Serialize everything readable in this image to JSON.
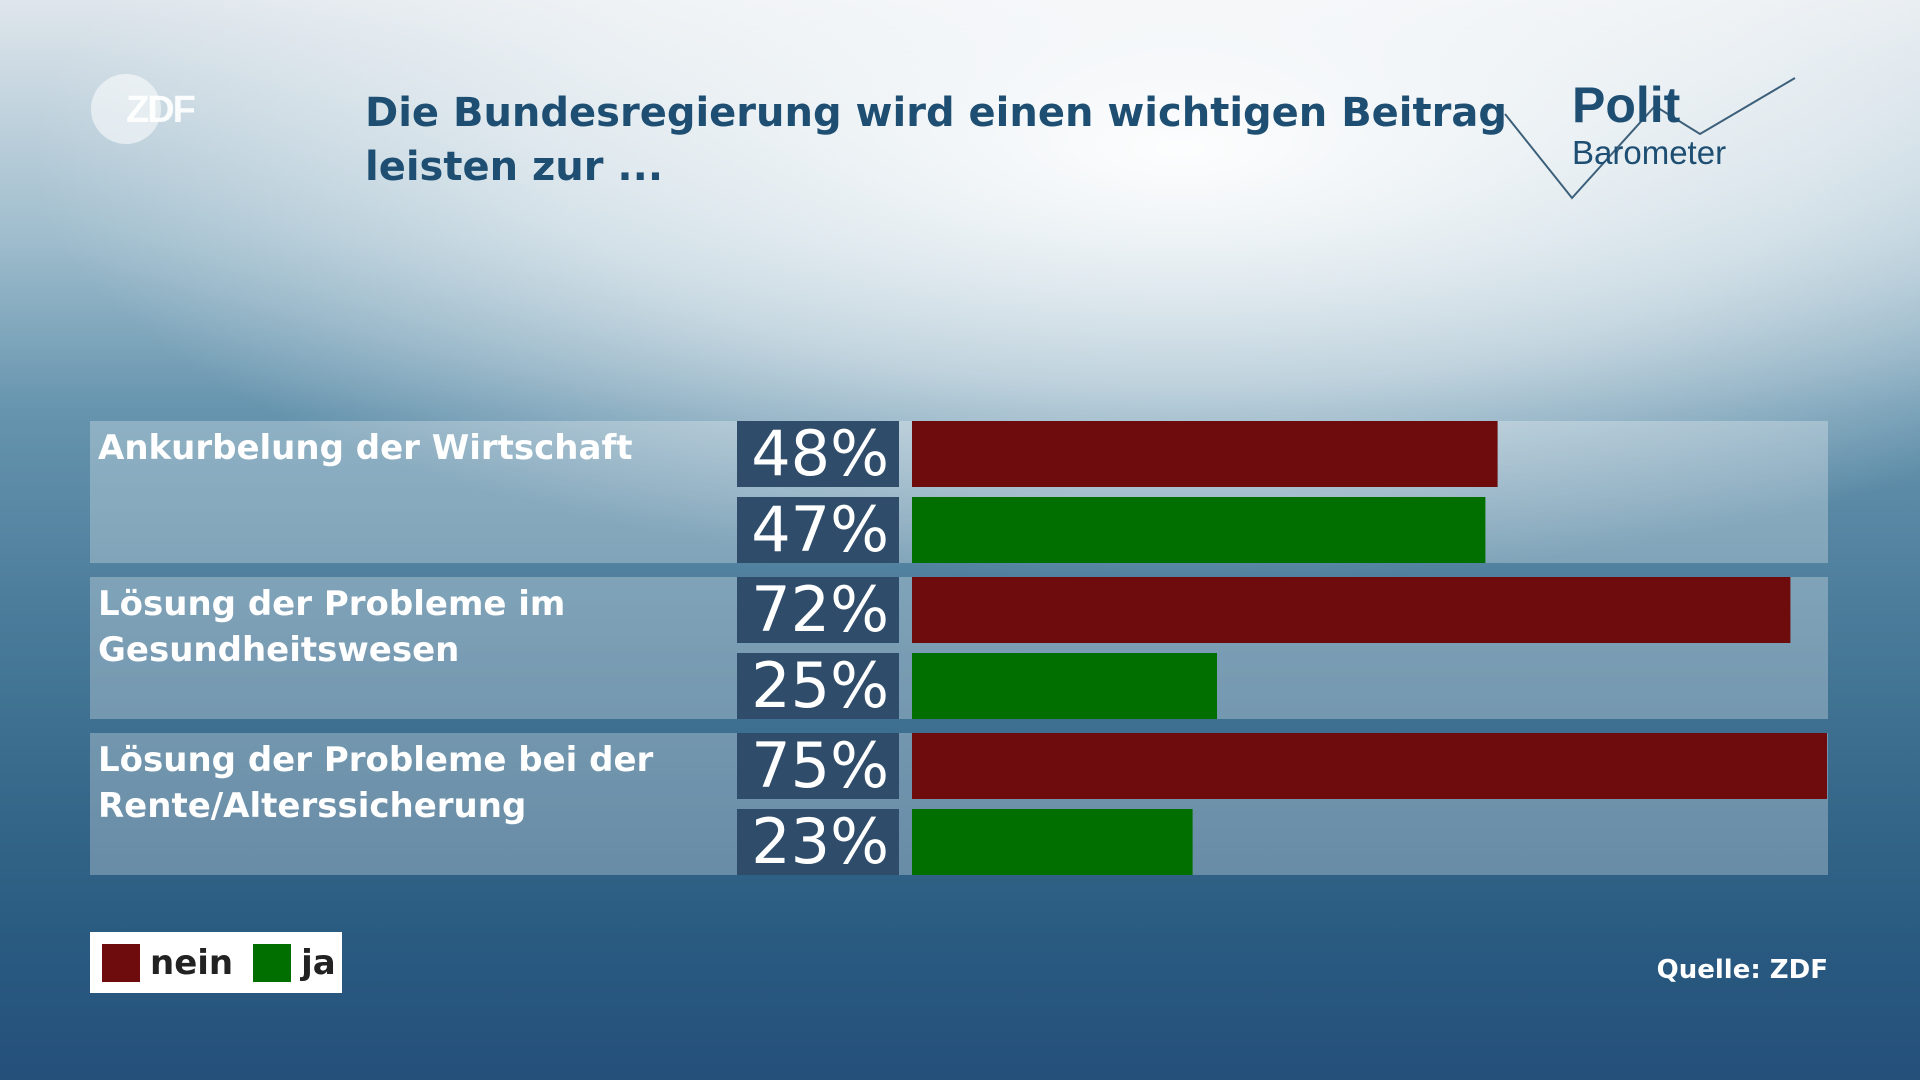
{
  "title": "Die Bundesregierung wird einen wichtigen Beitrag leisten zur ...",
  "logos": {
    "zdf": "ZDF",
    "politbarometer_line1": "Polit",
    "politbarometer_line2": "Barometer"
  },
  "source": "Quelle: ZDF",
  "legend": [
    {
      "label": "nein",
      "color": "#6e0b0c"
    },
    {
      "label": "ja",
      "color": "#006f00"
    }
  ],
  "colors": {
    "nein": "#6e0b0c",
    "ja": "#006f00",
    "row_background": "rgba(255,255,255,0.28)",
    "value_box": "#2f4d6b",
    "title": "#1e4f73"
  },
  "chart_data": {
    "type": "bar",
    "orientation": "horizontal",
    "categories": [
      "Ankurbelung der Wirtschaft",
      "Lösung der Probleme im Gesundheitswesen",
      "Lösung der Probleme bei der Rente/Alterssicherung"
    ],
    "category_lines": [
      [
        "Ankurbelung der Wirtschaft"
      ],
      [
        "Lösung der Probleme im",
        "Gesundheitswesen"
      ],
      [
        "Lösung der Probleme bei der",
        "Rente/Alterssicherung"
      ]
    ],
    "series": [
      {
        "name": "nein",
        "values": [
          48,
          72,
          75
        ],
        "labels": [
          "48%",
          "72%",
          "75%"
        ]
      },
      {
        "name": "ja",
        "values": [
          47,
          25,
          23
        ],
        "labels": [
          "47%",
          "25%",
          "23%"
        ]
      }
    ],
    "xlim": [
      0,
      75
    ],
    "unit": "%",
    "grid": false,
    "legend_position": "bottom-left"
  }
}
